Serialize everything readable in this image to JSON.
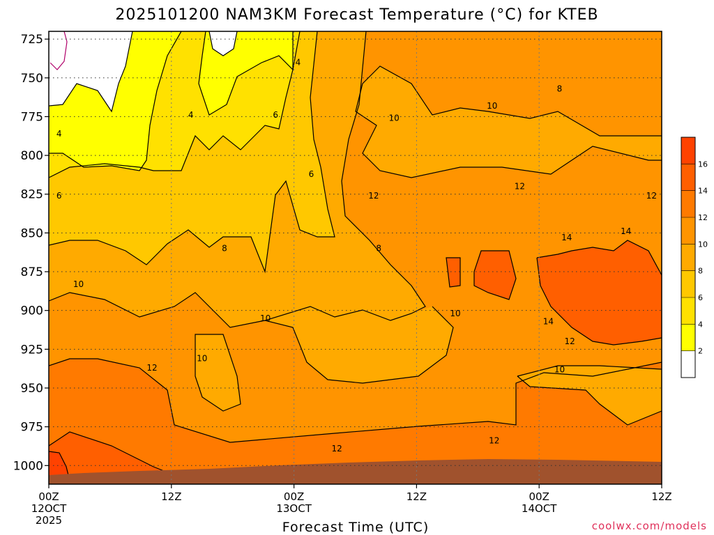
{
  "chart_data": {
    "type": "heatmap",
    "title": "2025101200 NAM3KM Forecast Temperature (°C) for KTEB",
    "xlabel": "Forecast Time (UTC)",
    "ylabel": "",
    "credit": "coolwx.com/models",
    "y_axis": {
      "range": [
        1012,
        720
      ],
      "ticks": [
        "725",
        "750",
        "775",
        "800",
        "825",
        "850",
        "875",
        "900",
        "925",
        "950",
        "975",
        "1000"
      ]
    },
    "x_axis": {
      "range_hours": [
        0,
        60
      ],
      "ticks": [
        {
          "l1": "00Z",
          "l2": "12OCT",
          "l3": "2025"
        },
        {
          "l1": "12Z",
          "l2": "",
          "l3": ""
        },
        {
          "l1": "00Z",
          "l2": "13OCT",
          "l3": ""
        },
        {
          "l1": "12Z",
          "l2": "",
          "l3": ""
        },
        {
          "l1": "00Z",
          "l2": "14OCT",
          "l3": ""
        },
        {
          "l1": "12Z",
          "l2": "",
          "l3": ""
        }
      ]
    },
    "colorbar": {
      "ticks": [
        "2",
        "4",
        "6",
        "8",
        "10",
        "12",
        "14",
        "16"
      ],
      "levels": [
        0,
        2,
        4,
        6,
        8,
        10,
        12,
        14,
        16,
        18
      ],
      "colors": [
        "#ffffff",
        "#ffff00",
        "#ffe100",
        "#ffc800",
        "#ffaa00",
        "#ff9400",
        "#ff7a00",
        "#ff5f00",
        "#ff4200"
      ]
    },
    "contour_labels": [
      {
        "text": "4",
        "x": 24.4,
        "y": 740
      },
      {
        "text": "4",
        "x": 13.9,
        "y": 774
      },
      {
        "text": "4",
        "x": 1.0,
        "y": 786
      },
      {
        "text": "6",
        "x": 22.2,
        "y": 774
      },
      {
        "text": "6",
        "x": 25.7,
        "y": 812
      },
      {
        "text": "6",
        "x": 1.0,
        "y": 826
      },
      {
        "text": "8",
        "x": 17.2,
        "y": 860
      },
      {
        "text": "8",
        "x": 32.3,
        "y": 860
      },
      {
        "text": "8",
        "x": 50.0,
        "y": 757
      },
      {
        "text": "10",
        "x": 2.9,
        "y": 883
      },
      {
        "text": "10",
        "x": 21.2,
        "y": 905
      },
      {
        "text": "10",
        "x": 15.0,
        "y": 931
      },
      {
        "text": "10",
        "x": 33.8,
        "y": 776
      },
      {
        "text": "10",
        "x": 43.4,
        "y": 768
      },
      {
        "text": "10",
        "x": 39.8,
        "y": 902
      },
      {
        "text": "10",
        "x": 50.0,
        "y": 938
      },
      {
        "text": "12",
        "x": 10.1,
        "y": 937
      },
      {
        "text": "12",
        "x": 28.2,
        "y": 989
      },
      {
        "text": "12",
        "x": 31.8,
        "y": 826
      },
      {
        "text": "12",
        "x": 43.6,
        "y": 984
      },
      {
        "text": "12",
        "x": 46.1,
        "y": 820
      },
      {
        "text": "12",
        "x": 59.0,
        "y": 826
      },
      {
        "text": "12",
        "x": 51.0,
        "y": 920
      },
      {
        "text": "14",
        "x": 50.7,
        "y": 853
      },
      {
        "text": "14",
        "x": 56.5,
        "y": 849
      },
      {
        "text": "14",
        "x": 48.9,
        "y": 907
      }
    ]
  }
}
